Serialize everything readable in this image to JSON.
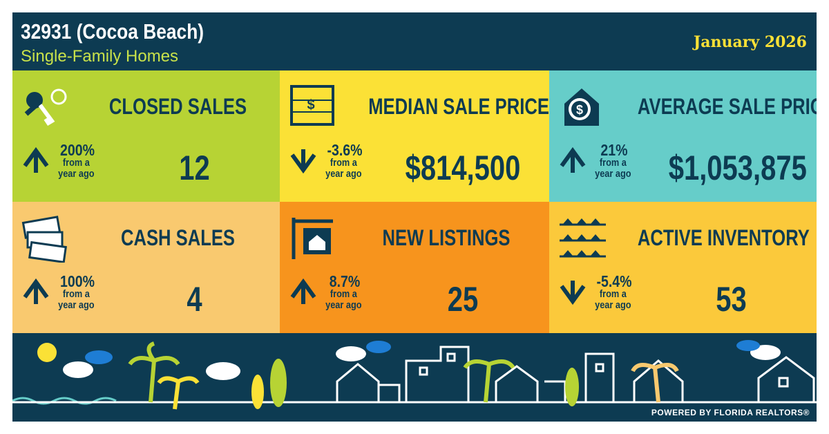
{
  "header": {
    "title": "32931 (Cocoa Beach)",
    "subtitle": "Single-Family Homes",
    "date": "January 2026"
  },
  "tiles": [
    {
      "label": "CLOSED SALES",
      "change": "200%",
      "caption": "from a year ago",
      "value": "12",
      "color": "#b7d334"
    },
    {
      "label": "MEDIAN SALE PRICE",
      "change": "-3.6%",
      "caption": "from a year ago",
      "value": "$814,500",
      "color": "#fbe136"
    },
    {
      "label": "AVERAGE SALE PRICE",
      "change": "21%",
      "caption": "from a year ago",
      "value": "$1,053,875",
      "color": "#66cdc9"
    },
    {
      "label": "CASH SALES",
      "change": "100%",
      "caption": "from a year ago",
      "value": "4",
      "color": "#f9c96f"
    },
    {
      "label": "NEW LISTINGS",
      "change": "8.7%",
      "caption": "from a year ago",
      "value": "25",
      "color": "#f7941d"
    },
    {
      "label": "ACTIVE INVENTORY",
      "change": "-5.4%",
      "caption": "from a year ago",
      "value": "53",
      "color": "#fbc93b"
    }
  ],
  "footer": {
    "credit": "POWERED BY FLORIDA REALTORS®"
  }
}
